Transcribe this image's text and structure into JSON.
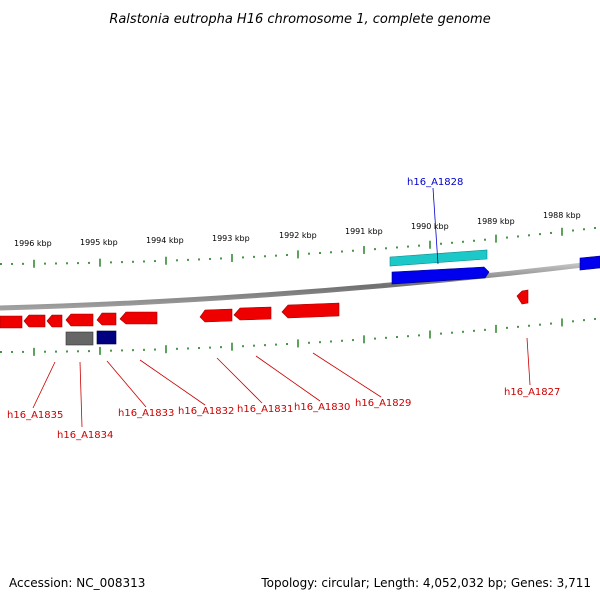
{
  "title": "Ralstonia eutropha H16 chromosome 1, complete genome",
  "footer": {
    "accession": "Accession: NC_008313",
    "stats": "Topology: circular; Length: 4,052,032 bp; Genes: 3,711"
  },
  "ruler_labels": [
    "1996 kbp",
    "1995 kbp",
    "1994 kbp",
    "1993 kbp",
    "1992 kbp",
    "1991 kbp",
    "1990 kbp",
    "1989 kbp",
    "1988 kbp"
  ],
  "gene_labels": [
    {
      "text": "h16_A1828",
      "color": "#0000cc"
    },
    {
      "text": "h16_A1835",
      "color": "#cc0000"
    },
    {
      "text": "h16_A1834",
      "color": "#cc0000"
    },
    {
      "text": "h16_A1833",
      "color": "#cc0000"
    },
    {
      "text": "h16_A1832",
      "color": "#cc0000"
    },
    {
      "text": "h16_A1831",
      "color": "#cc0000"
    },
    {
      "text": "h16_A1830",
      "color": "#cc0000"
    },
    {
      "text": "h16_A1829",
      "color": "#cc0000"
    },
    {
      "text": "h16_A1827",
      "color": "#cc0000"
    }
  ],
  "colors": {
    "forward_gene": "#0000ee",
    "forward_gene_alt": "#1cc8c8",
    "reverse_gene": "#ee0000",
    "rna_gene_dark": "#000080",
    "rna_gene_gray": "#666666",
    "tick": "#1a7a1a",
    "backbone": "#808080"
  }
}
